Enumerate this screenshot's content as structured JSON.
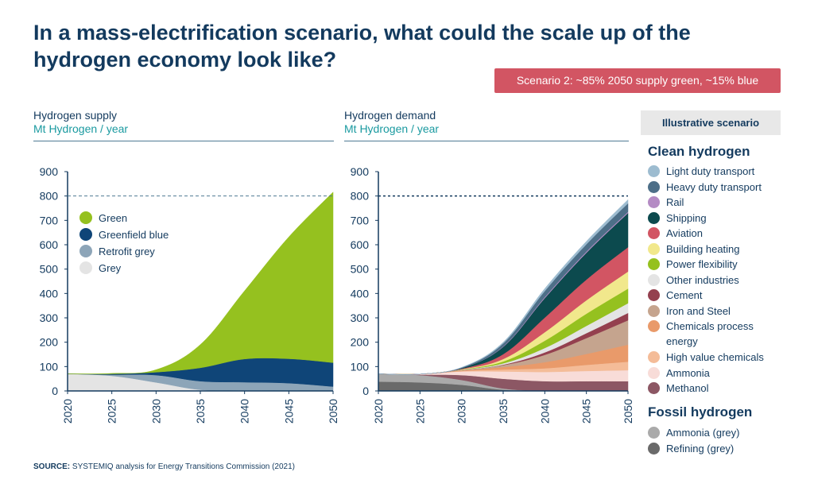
{
  "title": "In a mass-electrification scenario, what could the scale up of the hydrogen economy look like?",
  "scenario_badge": "Scenario 2: ~85% 2050 supply green, ~15% blue",
  "illustrative_label": "Illustrative scenario",
  "source": {
    "label": "SOURCE:",
    "text": "SYSTEMIQ analysis for Energy Transitions Commission (2021)"
  },
  "colors": {
    "title": "#133a5e",
    "units": "#1a9aa0",
    "badge": "#d25563"
  },
  "legend": {
    "clean_heading": "Clean hydrogen",
    "clean": [
      {
        "label": "Light duty transport",
        "color": "#9dbcd0"
      },
      {
        "label": "Heavy duty transport",
        "color": "#4d6f88"
      },
      {
        "label": "Rail",
        "color": "#b48bc4"
      },
      {
        "label": "Shipping",
        "color": "#0c4a4e"
      },
      {
        "label": "Aviation",
        "color": "#d25563"
      },
      {
        "label": "Building heating",
        "color": "#f1e88c"
      },
      {
        "label": "Power flexibility",
        "color": "#95c11f"
      },
      {
        "label": "Other industries",
        "color": "#e4e4e4"
      },
      {
        "label": "Cement",
        "color": "#94404f"
      },
      {
        "label": "Iron and Steel",
        "color": "#c5a48e"
      },
      {
        "label": "Chemicals process energy",
        "color": "#e99a6a"
      },
      {
        "label": "High value chemicals",
        "color": "#f4bc98"
      },
      {
        "label": "Ammonia",
        "color": "#f8dcd8"
      },
      {
        "label": "Methanol",
        "color": "#8c5764"
      }
    ],
    "fossil_heading": "Fossil hydrogen",
    "fossil": [
      {
        "label": "Ammonia (grey)",
        "color": "#aaaaaa"
      },
      {
        "label": "Refining (grey)",
        "color": "#6a6a6a"
      }
    ]
  },
  "chart_data": [
    {
      "type": "area",
      "title": "Hydrogen supply",
      "ylabel": "Mt Hydrogen / year",
      "x": [
        2020,
        2025,
        2030,
        2035,
        2040,
        2045,
        2050
      ],
      "xlim": [
        2020,
        2050
      ],
      "ylim": [
        0,
        900
      ],
      "yticks": [
        0,
        100,
        200,
        300,
        400,
        500,
        600,
        700,
        800,
        900
      ],
      "reference_line": 800,
      "legend_position": "upper-left",
      "series": [
        {
          "name": "Grey",
          "color": "#e4e4e4",
          "values": [
            70,
            62,
            35,
            5,
            3,
            2,
            0
          ]
        },
        {
          "name": "Retrofit grey",
          "color": "#8da5b8",
          "values": [
            0,
            5,
            30,
            35,
            33,
            30,
            18
          ]
        },
        {
          "name": "Greenfield blue",
          "color": "#0f4578",
          "values": [
            0,
            3,
            12,
            55,
            95,
            100,
            98
          ]
        },
        {
          "name": "Green",
          "color": "#95c11f",
          "values": [
            0,
            2,
            10,
            95,
            280,
            500,
            700
          ]
        }
      ]
    },
    {
      "type": "area",
      "title": "Hydrogen demand",
      "ylabel": "Mt Hydrogen / year",
      "x": [
        2020,
        2025,
        2030,
        2035,
        2040,
        2045,
        2050
      ],
      "xlim": [
        2020,
        2050
      ],
      "ylim": [
        0,
        900
      ],
      "yticks": [
        0,
        100,
        200,
        300,
        400,
        500,
        600,
        700,
        800,
        900
      ],
      "reference_line": 800,
      "series": [
        {
          "name": "Refining (grey)",
          "color": "#6a6a6a",
          "values": [
            38,
            35,
            25,
            5,
            0,
            0,
            0
          ]
        },
        {
          "name": "Ammonia (grey)",
          "color": "#aaaaaa",
          "values": [
            32,
            30,
            20,
            5,
            0,
            0,
            0
          ]
        },
        {
          "name": "Methanol",
          "color": "#8c5764",
          "values": [
            0,
            2,
            20,
            40,
            40,
            40,
            40
          ]
        },
        {
          "name": "Ammonia",
          "color": "#f8dcd8",
          "values": [
            0,
            2,
            15,
            30,
            38,
            42,
            45
          ]
        },
        {
          "name": "High value chemicals",
          "color": "#f4bc98",
          "values": [
            0,
            0,
            2,
            8,
            15,
            25,
            35
          ]
        },
        {
          "name": "Chemicals process energy",
          "color": "#e99a6a",
          "values": [
            0,
            0,
            2,
            10,
            25,
            45,
            70
          ]
        },
        {
          "name": "Iron and Steel",
          "color": "#c5a48e",
          "values": [
            0,
            0,
            2,
            8,
            30,
            65,
            100
          ]
        },
        {
          "name": "Cement",
          "color": "#94404f",
          "values": [
            0,
            0,
            0,
            2,
            10,
            20,
            30
          ]
        },
        {
          "name": "Other industries",
          "color": "#e4e4e4",
          "values": [
            0,
            0,
            1,
            5,
            18,
            30,
            40
          ]
        },
        {
          "name": "Power flexibility",
          "color": "#95c11f",
          "values": [
            0,
            0,
            1,
            8,
            30,
            50,
            60
          ]
        },
        {
          "name": "Building heating",
          "color": "#f1e88c",
          "values": [
            0,
            0,
            1,
            10,
            35,
            55,
            70
          ]
        },
        {
          "name": "Aviation",
          "color": "#d25563",
          "values": [
            0,
            0,
            2,
            20,
            60,
            85,
            100
          ]
        },
        {
          "name": "Shipping",
          "color": "#0c4a4e",
          "values": [
            0,
            0,
            3,
            30,
            80,
            110,
            140
          ]
        },
        {
          "name": "Rail",
          "color": "#b48bc4",
          "values": [
            0,
            0,
            0,
            2,
            4,
            5,
            5
          ]
        },
        {
          "name": "Heavy duty transport",
          "color": "#4d6f88",
          "values": [
            0,
            0,
            2,
            12,
            25,
            30,
            35
          ]
        },
        {
          "name": "Light duty transport",
          "color": "#9dbcd0",
          "values": [
            0,
            0,
            1,
            5,
            10,
            12,
            15
          ]
        }
      ]
    }
  ]
}
